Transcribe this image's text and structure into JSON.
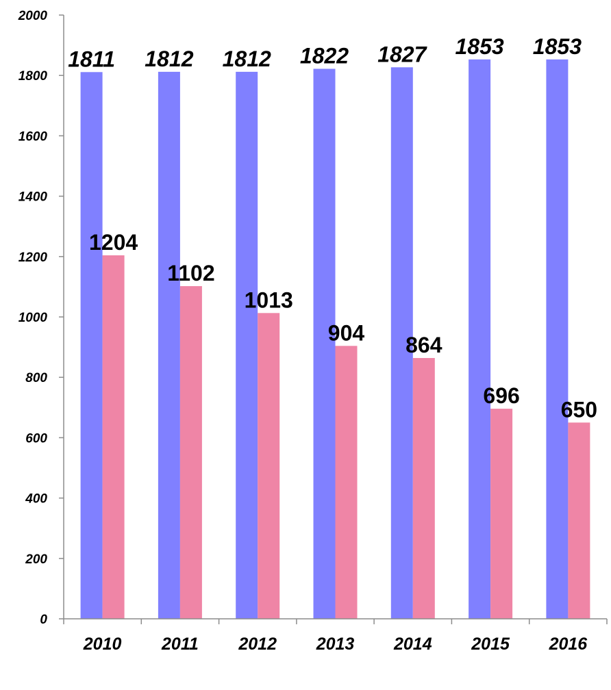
{
  "chart_data": {
    "type": "bar",
    "title": "",
    "xlabel": "",
    "ylabel": "",
    "categories": [
      "2010",
      "2011",
      "2012",
      "2013",
      "2014",
      "2015",
      "2016"
    ],
    "series": [
      {
        "values": [
          1811,
          1812,
          1812,
          1822,
          1827,
          1853,
          1853
        ],
        "color": "#8080ff",
        "data_label_style": "bold-italic"
      },
      {
        "values": [
          1204,
          1102,
          1013,
          904,
          864,
          696,
          650
        ],
        "color": "#ef85a6",
        "data_label_style": "bold"
      }
    ],
    "ylim": [
      0,
      2000
    ],
    "yticks": [
      0,
      200,
      400,
      600,
      800,
      1000,
      1200,
      1400,
      1600,
      1800,
      2000
    ],
    "grid": false,
    "legend": "none",
    "data_labels": true
  }
}
